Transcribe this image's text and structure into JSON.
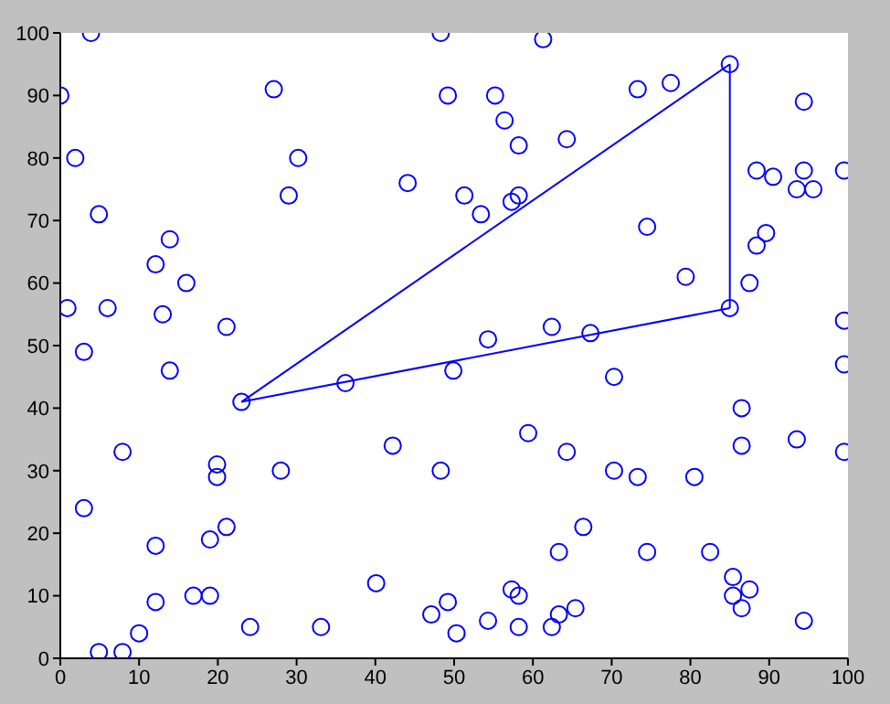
{
  "chart_data": {
    "type": "scatter",
    "xlim": [
      0,
      100
    ],
    "ylim": [
      0,
      100
    ],
    "xticks": [
      0,
      10,
      20,
      30,
      40,
      50,
      60,
      70,
      80,
      90,
      100
    ],
    "yticks": [
      0,
      10,
      20,
      30,
      40,
      50,
      60,
      70,
      80,
      90,
      100
    ],
    "marker": "circle",
    "series": [
      {
        "color": "#0000ff",
        "x": [
          3.9,
          0,
          1.9,
          4.9,
          0.9,
          6,
          13.9,
          12.1,
          16,
          13,
          21.1,
          27.1,
          30.2,
          29,
          44.1,
          48.3,
          49.2,
          61.3,
          55.2,
          56.4,
          58.2,
          64.3,
          73.3,
          77.5,
          51.3,
          53.4,
          57.3,
          58.2,
          94.4,
          88.4,
          90.5,
          94.4,
          93.5,
          95.6,
          99.5,
          74.5,
          79.4,
          87.5,
          89.6,
          88.4,
          99.5,
          62.4,
          54.3,
          67.3,
          3,
          13.9,
          23,
          36.2,
          49.9,
          7.9,
          19.9,
          19.9,
          28,
          42.2,
          48.3,
          3,
          21.1,
          19,
          12.1,
          16.9,
          19,
          12.1,
          10,
          4.9,
          7.9,
          24.1,
          33.1,
          40.1,
          47.1,
          49.2,
          50.3,
          70.3,
          99.5,
          86.5,
          86.5,
          93.5,
          99.5,
          59.4,
          64.3,
          70.3,
          73.3,
          80.5,
          66.4,
          63.3,
          74.5,
          82.5,
          85.4,
          85.4,
          87.5,
          86.5,
          57.3,
          58.2,
          65.4,
          63.3,
          62.4,
          58.2,
          54.3,
          94.4,
          85,
          85
        ],
        "values": [
          100,
          90,
          80,
          71,
          56,
          56,
          67,
          63,
          60,
          55,
          53,
          91,
          80,
          74,
          76,
          100,
          90,
          99,
          90,
          86,
          82,
          83,
          91,
          92,
          74,
          71,
          73,
          74,
          89,
          78,
          77,
          78,
          75,
          75,
          78,
          69,
          61,
          60,
          68,
          66,
          54,
          53,
          51,
          52,
          49,
          46,
          41,
          44,
          46,
          33,
          31,
          29,
          30,
          34,
          30,
          24,
          21,
          19,
          18,
          10,
          10,
          9,
          4,
          1,
          1,
          5,
          5,
          12,
          7,
          9,
          4,
          45,
          47,
          40,
          34,
          35,
          33,
          36,
          33,
          30,
          29,
          29,
          21,
          17,
          17,
          17,
          13,
          10,
          11,
          8,
          11,
          10,
          8,
          7,
          5,
          5,
          6,
          6,
          95,
          56
        ]
      },
      {
        "type": "line",
        "color": "#0000ff",
        "marker": "none",
        "line_style": "solid",
        "x": [
          23,
          85
        ],
        "values": [
          41,
          95
        ]
      },
      {
        "type": "line",
        "color": "#0000ff",
        "marker": "none",
        "line_style": "solid",
        "x": [
          85,
          85
        ],
        "values": [
          95,
          56
        ]
      },
      {
        "type": "line",
        "color": "#0000ff",
        "marker": "none",
        "line_style": "solid",
        "x": [
          23,
          85
        ],
        "values": [
          41,
          56
        ]
      }
    ]
  }
}
